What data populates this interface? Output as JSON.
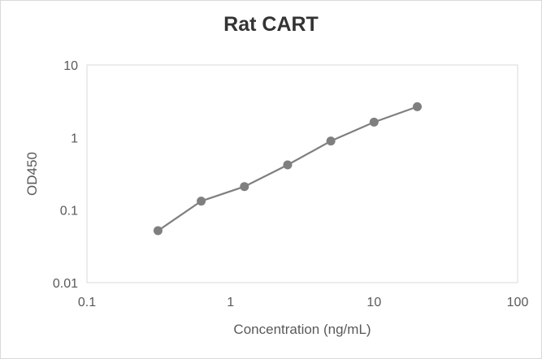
{
  "chart_data": {
    "type": "line",
    "title": "Rat CART",
    "xlabel": "Concentration (ng/mL)",
    "ylabel": "OD450",
    "xscale": "log",
    "yscale": "log",
    "xlim": [
      0.1,
      100
    ],
    "ylim": [
      0.01,
      10
    ],
    "xticks": [
      "0.1",
      "1",
      "10",
      "100"
    ],
    "yticks": [
      "0.01",
      "0.1",
      "1",
      "10"
    ],
    "grid": false,
    "legend": "none",
    "series": [
      {
        "color": "#7f7f7f",
        "x": [
          0.3125,
          0.625,
          1.25,
          2.5,
          5,
          10,
          20
        ],
        "y": [
          0.052,
          0.133,
          0.211,
          0.42,
          0.895,
          1.63,
          2.66
        ]
      }
    ]
  }
}
